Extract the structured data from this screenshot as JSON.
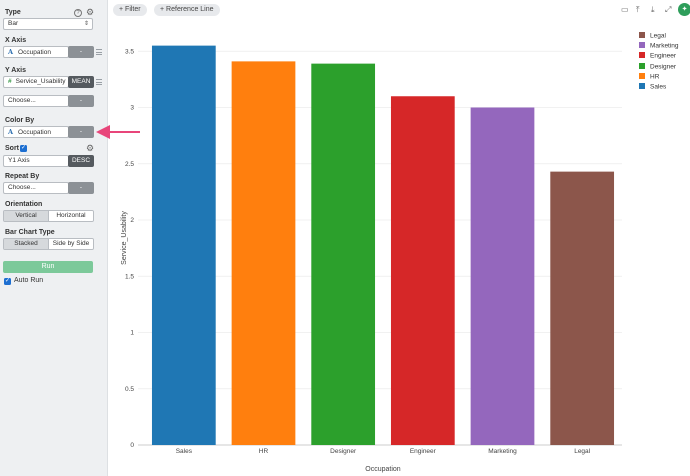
{
  "sidebar": {
    "type": {
      "label": "Type",
      "value": "Bar"
    },
    "x_axis": {
      "label": "X Axis",
      "field": "Occupation",
      "button": "-"
    },
    "y_axis": {
      "label": "Y Axis",
      "field": "Service_Usability",
      "agg": "MEAN",
      "choose": "Choose...",
      "button": "-"
    },
    "color_by": {
      "label": "Color By",
      "field": "Occupation",
      "button": "-"
    },
    "sort": {
      "label": "Sort",
      "checked": true,
      "value": "Y1 Axis",
      "order": "DESC"
    },
    "repeat_by": {
      "label": "Repeat By",
      "value": "Choose...",
      "button": "-"
    },
    "orientation": {
      "label": "Orientation",
      "options": [
        "Vertical",
        "Horizontal"
      ],
      "selected": "Vertical"
    },
    "bar_chart_type": {
      "label": "Bar Chart Type",
      "options": [
        "Stacked",
        "Side by Side"
      ],
      "selected": "Stacked"
    },
    "run": {
      "label": "Run"
    },
    "auto_run": {
      "label": "Auto Run",
      "checked": true
    }
  },
  "toolbar": {
    "filter": "Filter",
    "reference_line": "Reference Line",
    "icons": [
      "comment-icon",
      "upload-icon",
      "download-icon",
      "expand-icon",
      "pin-icon"
    ]
  },
  "colors": {
    "Sales": "#1f77b4",
    "HR": "#ff7f0e",
    "Designer": "#2ca02c",
    "Engineer": "#d62728",
    "Marketing": "#9467bd",
    "Legal": "#8c564b",
    "accent_green": "#2e9e5b",
    "arrow": "#e8457a"
  },
  "chart_data": {
    "type": "bar",
    "categories": [
      "Sales",
      "HR",
      "Designer",
      "Engineer",
      "Marketing",
      "Legal"
    ],
    "values": [
      3.55,
      3.41,
      3.39,
      3.1,
      3.0,
      2.43
    ],
    "xlabel": "Occupation",
    "ylabel": "Service_Usability",
    "ylim": [
      0,
      3.6
    ],
    "yticks": [
      "0",
      "0.5",
      "1",
      "1.5",
      "2",
      "2.5",
      "3",
      "3.5"
    ],
    "grid": true,
    "legend": {
      "placement": "top-right",
      "entries": [
        "Legal",
        "Marketing",
        "Engineer",
        "Designer",
        "HR",
        "Sales"
      ]
    }
  }
}
